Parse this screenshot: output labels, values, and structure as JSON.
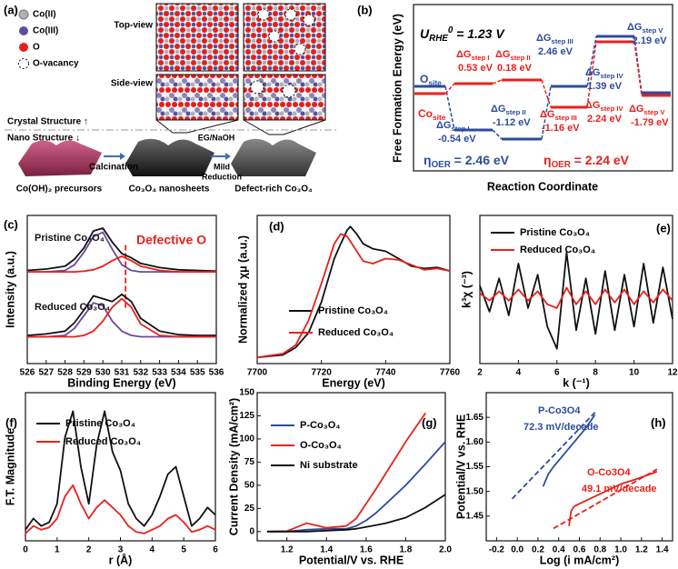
{
  "schematic": {
    "panel_label": "(a)",
    "legend": [
      "Co(II)",
      "Co(III)",
      "O",
      "O-vacancy"
    ],
    "top_view": "Top-view",
    "side_view": "Side-view",
    "crystal": "Crystal Structure ↑",
    "nano": "Nano Structure ↓",
    "calcination": "Calcination",
    "eg": "EG/NaOH",
    "mild_reduction": [
      "Mild",
      "Reduction"
    ],
    "products": [
      "Co(OH)₂ precursors",
      "Co₃O₄ nanosheets",
      "Defect-rich Co₃O₄"
    ]
  },
  "energy_diagram": {
    "panel_label": "(b)",
    "title": {
      "symbol": "U",
      "sub": "RHE",
      "sup": "0",
      "text": " = 1.23 V"
    },
    "sites": [
      {
        "symbol": "O",
        "sub": "site",
        "color": "#2c4c9c"
      },
      {
        "symbol": "Co",
        "sub": "site",
        "color": "#e8211d"
      }
    ],
    "steps": [
      {
        "symbol": "ΔG",
        "sub": "step I",
        "value": "0.53 eV",
        "color": "#e8211d"
      },
      {
        "symbol": "ΔG",
        "sub": "step II",
        "value": "0.18 eV",
        "color": "#e8211d"
      },
      {
        "symbol": "ΔG",
        "sub": "step III",
        "value": "2.46 eV",
        "color": "#2c4c9c"
      },
      {
        "symbol": "ΔG",
        "sub": "step IV",
        "value": "1.39 eV",
        "color": "#2c4c9c"
      },
      {
        "symbol": "ΔG",
        "sub": "step V",
        "value": "-2.19 eV",
        "color": "#2c4c9c"
      },
      {
        "symbol": "ΔG",
        "sub": "step I",
        "value": "-0.54 eV",
        "color": "#2c4c9c"
      },
      {
        "symbol": "ΔG",
        "sub": "step II",
        "value": "-1.12 eV",
        "color": "#2c4c9c"
      },
      {
        "symbol": "ΔG",
        "sub": "step III",
        "value": "-1.16 eV",
        "color": "#e8211d"
      },
      {
        "symbol": "ΔG",
        "sub": "step IV",
        "value": "2.24 eV",
        "color": "#e8211d"
      },
      {
        "symbol": "ΔG",
        "sub": "step V",
        "value": "-1.79 eV",
        "color": "#e8211d"
      }
    ],
    "overpotentials": [
      {
        "symbol": "η",
        "sub": "OER",
        "text": " = 2.46 eV",
        "color": "#2c4c9c"
      },
      {
        "symbol": "η",
        "sub": "OER",
        "text": " = 2.24 eV",
        "color": "#e8211d"
      }
    ],
    "y_label": "Free Formation Energy (eV)",
    "x_label": "Reaction Coordinate"
  },
  "chart_data": [
    {
      "type": "line",
      "panel_label": "(c)",
      "x_label": "Binding Energy (eV)",
      "y_label": "Intensity (a.u.)",
      "x": [
        526,
        527,
        528,
        528.5,
        529,
        529.5,
        530,
        530.5,
        531,
        531.5,
        532,
        533,
        534,
        535,
        536
      ],
      "xlim": [
        526,
        536
      ],
      "ylim": [
        0,
        10.5
      ],
      "xticks": [
        526,
        527,
        528,
        529,
        530,
        531,
        532,
        533,
        534,
        535,
        536
      ],
      "reference_x": 531.2,
      "annotations": [
        {
          "text": "Pristine Co₃O₄",
          "color": "#111111"
        },
        {
          "text": "Reduced Co₃O₄",
          "color": "#111111"
        },
        {
          "text": "Defective O",
          "color": "#e8211d"
        }
      ],
      "series": [
        {
          "color": "#111111",
          "values": [
            6.6,
            6.7,
            6.9,
            7.4,
            8.2,
            9.4,
            9.6,
            8.6,
            7.8,
            7.5,
            7.1,
            6.8,
            6.65,
            6.6,
            6.55
          ]
        },
        {
          "color": "#6a4a9a",
          "values": [
            6.5,
            6.5,
            6.6,
            7.0,
            7.9,
            9.0,
            9.3,
            8.1,
            7.0,
            6.6,
            6.5,
            6.5,
            6.5,
            6.5,
            6.5
          ]
        },
        {
          "color": "#e8211d",
          "values": [
            6.5,
            6.5,
            6.5,
            6.5,
            6.55,
            6.65,
            6.9,
            7.3,
            7.6,
            7.3,
            6.9,
            6.6,
            6.5,
            6.5,
            6.5
          ]
        },
        {
          "color": "#111111",
          "values": [
            2.0,
            2.1,
            2.3,
            2.9,
            3.8,
            4.8,
            4.6,
            4.4,
            4.9,
            4.4,
            3.2,
            2.3,
            2.05,
            2.0,
            2.0
          ]
        },
        {
          "color": "#6a4a9a",
          "values": [
            1.9,
            1.9,
            2.0,
            2.5,
            3.4,
            4.3,
            4.1,
            3.0,
            2.3,
            2.0,
            1.9,
            1.9,
            1.9,
            1.9,
            1.9
          ]
        },
        {
          "color": "#e8211d",
          "values": [
            1.9,
            1.9,
            1.9,
            1.9,
            2.0,
            2.3,
            3.0,
            4.0,
            4.6,
            4.0,
            2.8,
            2.0,
            1.9,
            1.9,
            1.9
          ]
        }
      ]
    },
    {
      "type": "line",
      "panel_label": "(d)",
      "x_label": "Energy (eV)",
      "y_label": "Normalized χμ (a.u.)",
      "x": [
        7700,
        7708,
        7712,
        7716,
        7720,
        7724,
        7726,
        7728,
        7729,
        7731,
        7733,
        7736,
        7740,
        7744,
        7748,
        7752,
        7756,
        7760
      ],
      "xlim": [
        7700,
        7760
      ],
      "ylim": [
        -0.05,
        1.15
      ],
      "xticks": [
        7700,
        7720,
        7740,
        7760
      ],
      "series": [
        {
          "name": "Pristine Co₃O₄",
          "color": "#111111",
          "values": [
            0.0,
            0.02,
            0.08,
            0.2,
            0.45,
            0.8,
            0.92,
            1.03,
            1.06,
            1.0,
            0.92,
            0.88,
            0.86,
            0.8,
            0.74,
            0.72,
            0.73,
            0.7
          ]
        },
        {
          "name": "Reduced Co₃O₄",
          "color": "#e8211d",
          "values": [
            0.0,
            0.03,
            0.1,
            0.3,
            0.6,
            0.92,
            1.0,
            0.98,
            0.94,
            0.86,
            0.78,
            0.76,
            0.8,
            0.79,
            0.75,
            0.71,
            0.72,
            0.7
          ]
        }
      ]
    },
    {
      "type": "line",
      "panel_label": "(e)",
      "x_label": "k (⁻¹)",
      "y_label": "k³χ (⁻³)",
      "x": [
        2,
        2.5,
        3,
        3.5,
        4,
        4.5,
        5,
        5.5,
        6,
        6.5,
        7,
        7.5,
        8,
        8.5,
        9,
        9.5,
        10,
        10.5,
        11,
        11.5,
        12
      ],
      "xlim": [
        2,
        12
      ],
      "ylim": [
        -1.8,
        2.2
      ],
      "xticks": [
        2,
        4,
        6,
        8,
        10,
        12
      ],
      "series": [
        {
          "name": "Pristine Co₃O₄",
          "color": "#111111",
          "values": [
            0.3,
            -0.4,
            0.5,
            -0.5,
            0.9,
            -0.3,
            0.6,
            -0.8,
            -1.4,
            1.2,
            -0.9,
            0.5,
            -1.0,
            0.7,
            -0.9,
            0.6,
            -0.8,
            0.9,
            -0.7,
            0.8,
            -0.6
          ]
        },
        {
          "name": "Reduced Co₃O₄",
          "color": "#e8211d",
          "values": [
            0.1,
            -0.1,
            0.15,
            -0.1,
            0.2,
            -0.1,
            0.15,
            -0.2,
            -0.3,
            0.25,
            -0.2,
            0.15,
            -0.2,
            0.2,
            -0.15,
            0.2,
            -0.2,
            0.15,
            -0.15,
            0.2,
            -0.1
          ]
        }
      ]
    },
    {
      "type": "line",
      "panel_label": "(f)",
      "x_label": "r (Å)",
      "y_label": "F.T. Magnitude",
      "x": [
        0,
        0.25,
        0.5,
        0.75,
        1,
        1.25,
        1.5,
        1.75,
        2,
        2.25,
        2.5,
        2.75,
        3,
        3.25,
        3.5,
        3.75,
        4,
        4.25,
        4.5,
        4.75,
        5,
        5.25,
        5.5,
        5.75,
        6
      ],
      "xlim": [
        0,
        6
      ],
      "ylim": [
        0,
        2
      ],
      "xticks": [
        0,
        1,
        2,
        3,
        4,
        5,
        6
      ],
      "series": [
        {
          "name": "Pristine Co₃O₄",
          "color": "#111111",
          "values": [
            0.15,
            0.3,
            0.2,
            0.25,
            0.5,
            1.4,
            1.75,
            1.0,
            0.5,
            1.3,
            1.75,
            1.2,
            0.95,
            0.5,
            0.3,
            0.2,
            0.35,
            0.6,
            0.9,
            1.0,
            0.6,
            0.2,
            0.3,
            0.45,
            0.35
          ]
        },
        {
          "name": "Reduced Co₃O₄",
          "color": "#e8211d",
          "values": [
            0.1,
            0.2,
            0.15,
            0.18,
            0.3,
            0.6,
            0.75,
            0.5,
            0.3,
            0.45,
            0.55,
            0.45,
            0.35,
            0.2,
            0.12,
            0.1,
            0.15,
            0.2,
            0.3,
            0.35,
            0.25,
            0.12,
            0.15,
            0.2,
            0.15
          ]
        }
      ]
    },
    {
      "type": "line",
      "panel_label": "(g)",
      "x_label": "Potential/V vs. RHE",
      "y_label": "Current Density (mA/cm²)",
      "x": [
        1.1,
        1.2,
        1.3,
        1.4,
        1.5,
        1.55,
        1.6,
        1.65,
        1.7,
        1.8,
        1.9,
        2.0
      ],
      "xlim": [
        1.05,
        2.0
      ],
      "ylim": [
        -10,
        150
      ],
      "xticks": [
        1.2,
        1.4,
        1.6,
        1.8,
        {
          "value": 2,
          "label": "2.0"
        }
      ],
      "yticks": [
        0,
        25,
        50,
        75,
        100,
        125,
        150
      ],
      "series": [
        {
          "name": "P-Co₃O₄",
          "color": "#2c4c9c",
          "values": [
            0,
            0,
            2,
            3,
            3,
            6,
            12,
            20,
            30,
            50,
            73,
            97
          ]
        },
        {
          "name": "O-Co₃O₄",
          "color": "#e8211d",
          "values": [
            0,
            0.5,
            9,
            4,
            6,
            14,
            30,
            46,
            63,
            97,
            128,
            null
          ]
        },
        {
          "name": "Ni substrate",
          "color": "#111111",
          "values": [
            0,
            0,
            0,
            1,
            2,
            3,
            5,
            7,
            9,
            15,
            26,
            40
          ]
        }
      ]
    },
    {
      "type": "line",
      "panel_label": "(h)",
      "x_label": "Log (i mA/cm²)",
      "y_label": "Potential/V vs. RHE",
      "xlim": [
        -0.3,
        1.5
      ],
      "ylim": [
        1.4,
        1.7
      ],
      "xticks": [
        -0.2,
        {
          "value": 0,
          "label": "0.0"
        },
        0.2,
        0.4,
        0.6,
        0.8,
        {
          "value": 1,
          "label": "1.0"
        },
        1.2,
        1.4
      ],
      "yticks": [
        1.45,
        {
          "value": 1.5,
          "label": "1.50"
        },
        1.55,
        {
          "value": 1.6,
          "label": "1.60"
        },
        1.65
      ],
      "annotations": [
        {
          "text": "P-Co3O4",
          "color": "#2c4c9c"
        },
        {
          "text": "72.3 mV/decade",
          "color": "#2c4c9c"
        },
        {
          "text": "O-Co3O4",
          "color": "#e8211d"
        },
        {
          "text": "49.1 mV/decade",
          "color": "#e8211d"
        }
      ],
      "series": [
        {
          "color": "#2c4c9c",
          "x": [
            0.25,
            0.3,
            0.35,
            0.45,
            0.55,
            0.65,
            0.75
          ],
          "values": [
            1.51,
            1.535,
            1.55,
            1.575,
            1.6,
            1.625,
            1.655
          ]
        },
        {
          "color": "#2c4c9c",
          "dash": true,
          "x": [
            -0.05,
            0.75
          ],
          "values": [
            1.485,
            1.66
          ]
        },
        {
          "color": "#e8211d",
          "x": [
            0.5,
            0.52,
            0.55,
            0.6,
            0.7,
            0.85,
            1.0,
            1.15,
            1.35
          ],
          "values": [
            1.43,
            1.46,
            1.47,
            1.475,
            1.485,
            1.5,
            1.515,
            1.525,
            1.54
          ]
        },
        {
          "color": "#e8211d",
          "dash": true,
          "x": [
            0.35,
            1.35
          ],
          "values": [
            1.425,
            1.545
          ]
        }
      ]
    }
  ]
}
